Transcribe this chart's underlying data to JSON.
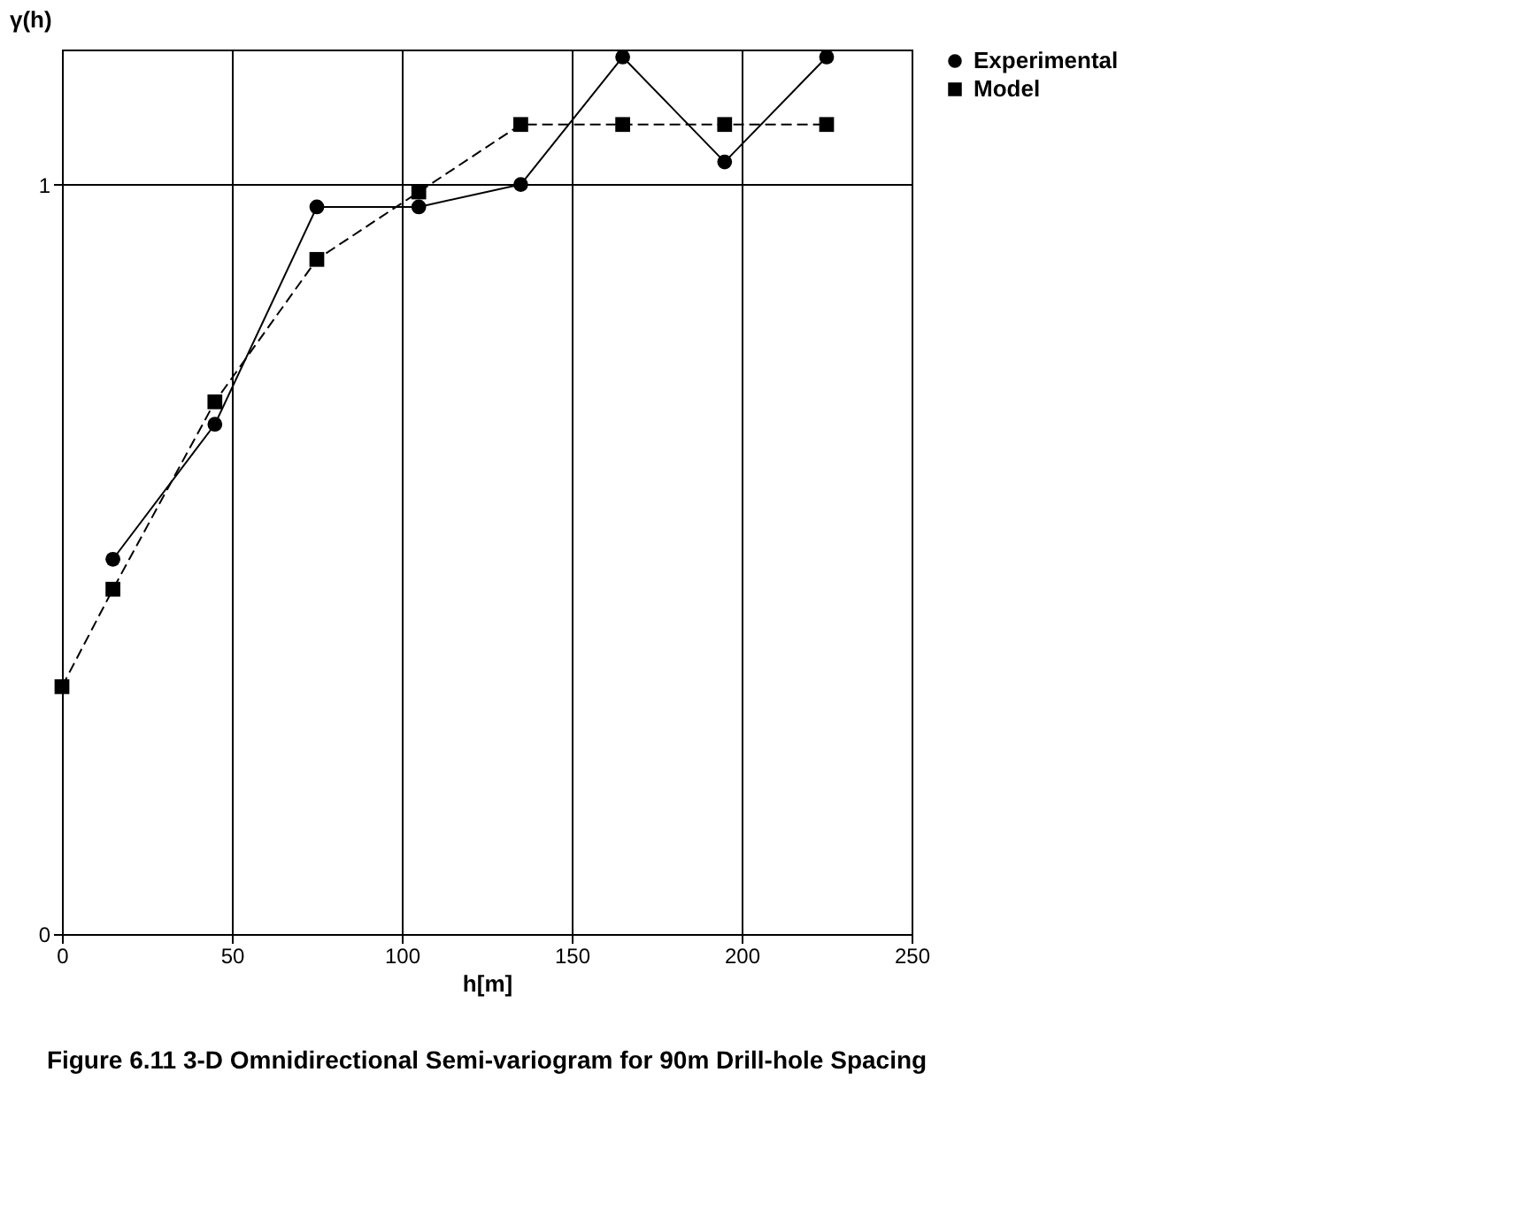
{
  "chart_data": {
    "type": "line",
    "title": "Figure 6.11  3-D Omnidirectional Semi-variogram for 90m Drill-hole Spacing",
    "xlabel": "h[m]",
    "ylabel": "γ(h)",
    "x": [
      15,
      45,
      75,
      105,
      135,
      165,
      195,
      225
    ],
    "series": [
      {
        "name": "Experimental",
        "color": "#000000",
        "marker": "circle",
        "line_style": "solid",
        "values": [
          0.5,
          0.68,
          0.97,
          0.97,
          1.0,
          1.17,
          1.03,
          1.17
        ]
      },
      {
        "name": "Model",
        "color": "#000000",
        "marker": "square",
        "line_style": "dashed",
        "x": [
          0,
          15,
          45,
          75,
          105,
          135,
          165,
          195,
          225
        ],
        "values": [
          0.33,
          0.46,
          0.71,
          0.9,
          0.99,
          1.08,
          1.08,
          1.08,
          1.08
        ]
      }
    ],
    "xlim": [
      0,
      250
    ],
    "xticks": [
      0,
      50,
      100,
      150,
      200,
      250
    ],
    "ylim": [
      0,
      1.18
    ],
    "yticks": [
      0,
      1
    ],
    "grid": true,
    "legend": "right"
  }
}
